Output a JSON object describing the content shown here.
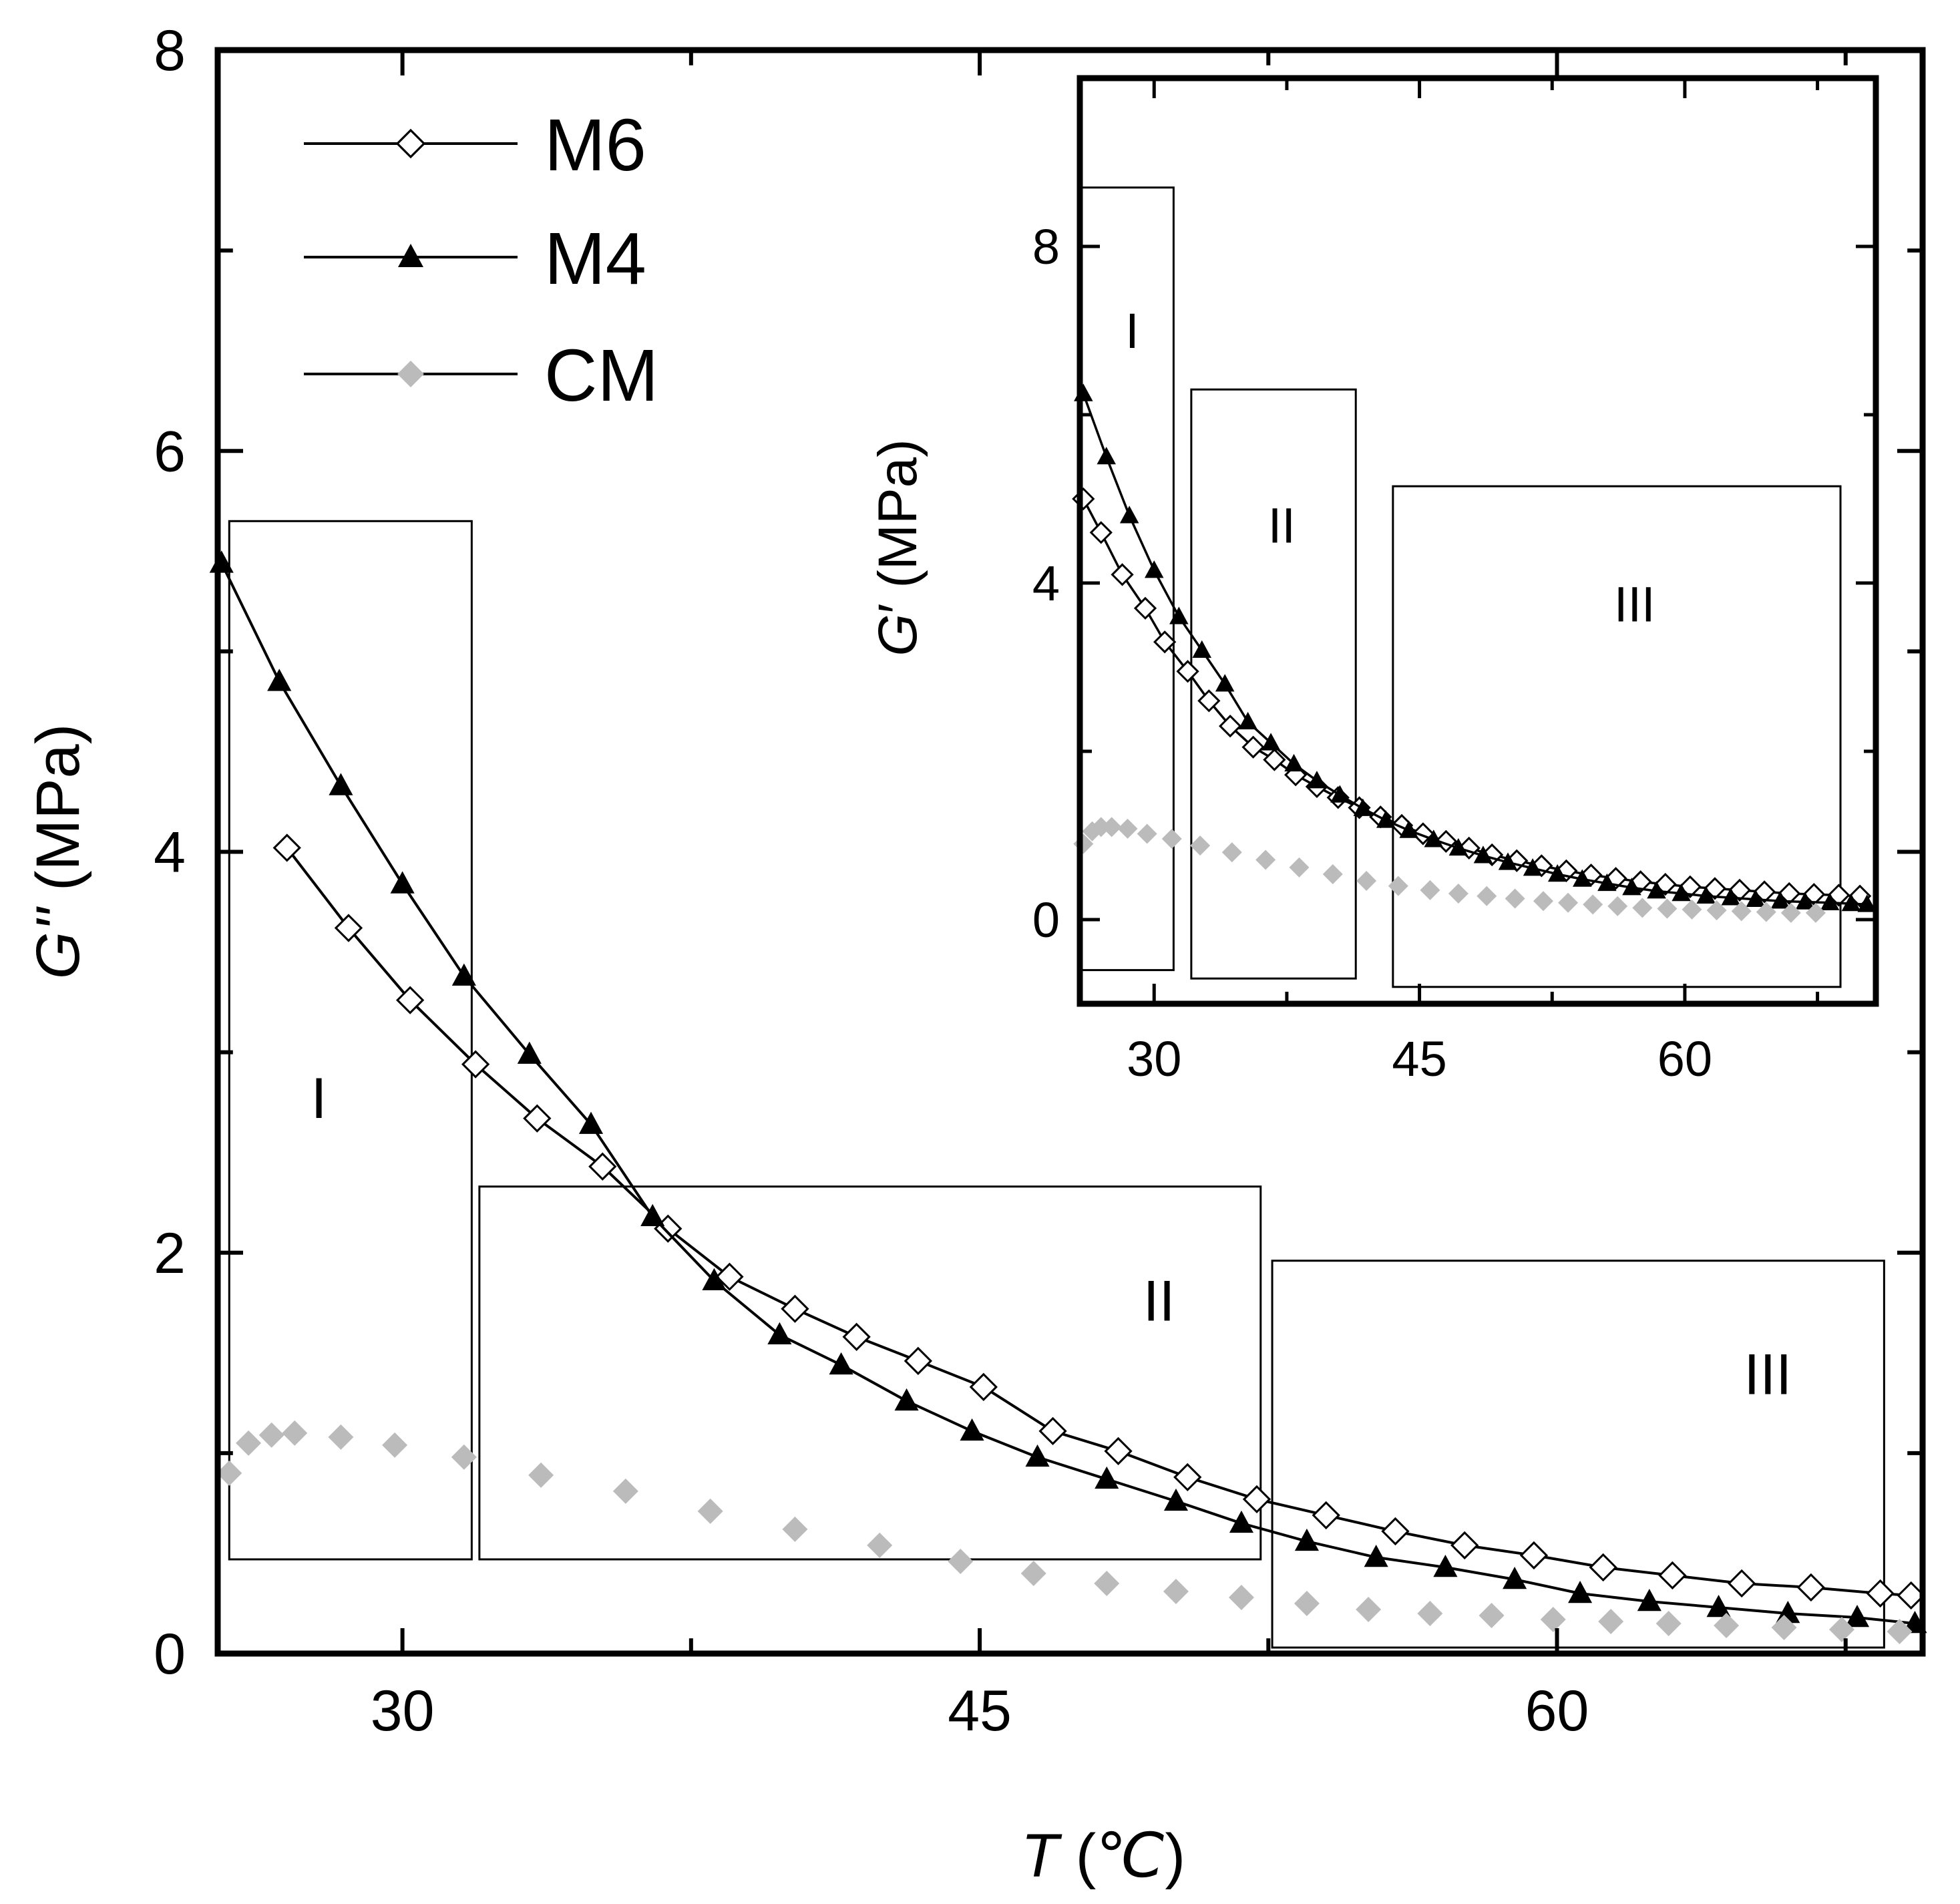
{
  "chart_data": [
    {
      "panel": "main",
      "type": "line",
      "title": "",
      "xlabel": "T (℃)",
      "ylabel": "G'' (MPa)",
      "xlim": [
        25.2,
        69.5
      ],
      "ylim": [
        0,
        8
      ],
      "xticks": [
        30,
        45,
        60
      ],
      "yticks": [
        0,
        2,
        4,
        6,
        8
      ],
      "legend": {
        "position": "top-left",
        "entries": [
          {
            "name": "M6",
            "marker": "open-diamond",
            "color": "#000000"
          },
          {
            "name": "M4",
            "marker": "filled-triangle",
            "color": "#000000"
          },
          {
            "name": "CM",
            "marker": "filled-diamond",
            "color": "#bbbbbb"
          }
        ]
      },
      "regions": [
        {
          "label": "I",
          "x_range": [
            25.5,
            31.8
          ],
          "y_range": [
            0.47,
            5.65
          ]
        },
        {
          "label": "II",
          "x_range": [
            32.0,
            52.3
          ],
          "y_range": [
            0.47,
            2.33
          ]
        },
        {
          "label": "III",
          "x_range": [
            52.6,
            68.5
          ],
          "y_range": [
            0.03,
            1.96
          ]
        }
      ],
      "series": [
        {
          "name": "M6",
          "x": [
            27.0,
            28.6,
            30.2,
            31.9,
            33.5,
            35.2,
            36.9,
            38.5,
            40.2,
            41.8,
            43.4,
            45.1,
            46.9,
            48.6,
            50.4,
            52.2,
            54.0,
            55.8,
            57.6,
            59.4,
            61.2,
            63.0,
            64.8,
            66.6,
            68.4,
            69.2
          ],
          "y": [
            4.02,
            3.62,
            3.26,
            2.94,
            2.67,
            2.43,
            2.12,
            1.88,
            1.72,
            1.58,
            1.46,
            1.33,
            1.11,
            1.01,
            0.88,
            0.77,
            0.69,
            0.61,
            0.54,
            0.49,
            0.43,
            0.39,
            0.35,
            0.33,
            0.3,
            0.29
          ]
        },
        {
          "name": "M4",
          "x": [
            25.3,
            26.8,
            28.4,
            30.0,
            31.6,
            33.3,
            34.9,
            36.5,
            38.1,
            39.8,
            41.4,
            43.1,
            44.8,
            46.5,
            48.3,
            50.1,
            51.8,
            53.5,
            55.3,
            57.1,
            58.9,
            60.6,
            62.4,
            64.2,
            66.0,
            67.8,
            69.3
          ],
          "y": [
            5.44,
            4.85,
            4.33,
            3.84,
            3.38,
            2.99,
            2.64,
            2.18,
            1.86,
            1.59,
            1.44,
            1.26,
            1.11,
            0.98,
            0.87,
            0.76,
            0.65,
            0.56,
            0.48,
            0.43,
            0.37,
            0.3,
            0.26,
            0.23,
            0.2,
            0.18,
            0.15
          ]
        },
        {
          "name": "CM",
          "x": [
            25.5,
            26.0,
            26.6,
            27.2,
            28.4,
            29.8,
            31.6,
            33.6,
            35.8,
            38.0,
            40.2,
            42.4,
            44.5,
            46.4,
            48.3,
            50.1,
            51.8,
            53.5,
            55.1,
            56.7,
            58.3,
            59.9,
            61.4,
            62.9,
            64.4,
            65.9,
            67.4,
            68.9
          ],
          "y": [
            0.9,
            1.05,
            1.09,
            1.1,
            1.08,
            1.04,
            0.98,
            0.89,
            0.81,
            0.71,
            0.62,
            0.54,
            0.46,
            0.4,
            0.35,
            0.31,
            0.28,
            0.25,
            0.22,
            0.2,
            0.19,
            0.17,
            0.16,
            0.15,
            0.14,
            0.13,
            0.12,
            0.11
          ]
        }
      ]
    },
    {
      "panel": "inset",
      "type": "line",
      "title": "",
      "xlabel": "",
      "ylabel": "G′ (MPa)",
      "xlim": [
        25.8,
        70.8
      ],
      "ylim": [
        -1.0,
        10.0
      ],
      "xticks": [
        30,
        45,
        60
      ],
      "yticks": [
        0,
        4,
        8
      ],
      "regions": [
        {
          "label": "I",
          "x_range": [
            25.9,
            31.1
          ],
          "y_range": [
            -0.6,
            8.7
          ]
        },
        {
          "label": "II",
          "x_range": [
            32.1,
            41.4
          ],
          "y_range": [
            -0.7,
            6.3
          ]
        },
        {
          "label": "III",
          "x_range": [
            43.5,
            68.8
          ],
          "y_range": [
            -0.8,
            5.15
          ]
        }
      ],
      "series": [
        {
          "name": "M6",
          "x": [
            26.0,
            27.0,
            28.2,
            29.5,
            30.6,
            31.9,
            33.1,
            34.3,
            35.6,
            36.8,
            38.0,
            39.2,
            40.4,
            41.6,
            42.8,
            44.0,
            45.2,
            46.5,
            47.8,
            49.1,
            50.5,
            51.9,
            53.3,
            54.7,
            56.1,
            57.5,
            58.9,
            60.3,
            61.7,
            63.1,
            64.5,
            65.9,
            67.3,
            68.7,
            69.9
          ],
          "y": [
            5.0,
            4.6,
            4.1,
            3.7,
            3.3,
            2.95,
            2.6,
            2.3,
            2.05,
            1.9,
            1.72,
            1.58,
            1.45,
            1.33,
            1.22,
            1.12,
            1.02,
            0.93,
            0.85,
            0.77,
            0.7,
            0.64,
            0.58,
            0.53,
            0.49,
            0.45,
            0.42,
            0.39,
            0.37,
            0.35,
            0.33,
            0.31,
            0.3,
            0.29,
            0.28
          ]
        },
        {
          "name": "M4",
          "x": [
            26.0,
            27.3,
            28.6,
            30.0,
            31.4,
            32.7,
            34.0,
            35.3,
            36.6,
            37.9,
            39.2,
            40.5,
            41.8,
            43.1,
            44.4,
            45.8,
            47.2,
            48.6,
            50.0,
            51.4,
            52.8,
            54.2,
            55.6,
            57.0,
            58.4,
            59.8,
            61.2,
            62.6,
            64.0,
            65.4,
            66.8,
            68.2,
            69.4,
            70.3
          ],
          "y": [
            6.25,
            5.5,
            4.8,
            4.15,
            3.6,
            3.2,
            2.8,
            2.35,
            2.1,
            1.85,
            1.65,
            1.48,
            1.32,
            1.18,
            1.06,
            0.95,
            0.85,
            0.76,
            0.68,
            0.61,
            0.54,
            0.48,
            0.43,
            0.38,
            0.34,
            0.31,
            0.28,
            0.26,
            0.24,
            0.22,
            0.21,
            0.2,
            0.19,
            0.18
          ]
        },
        {
          "name": "CM",
          "x": [
            26.0,
            26.5,
            27.0,
            27.6,
            28.5,
            29.6,
            31.0,
            32.6,
            34.4,
            36.3,
            38.2,
            40.1,
            42.0,
            43.8,
            45.6,
            47.2,
            48.8,
            50.4,
            52.0,
            53.4,
            54.8,
            56.2,
            57.6,
            59.0,
            60.4,
            61.8,
            63.2,
            64.6,
            66.0,
            67.4
          ],
          "y": [
            0.9,
            1.05,
            1.1,
            1.1,
            1.08,
            1.02,
            0.96,
            0.88,
            0.8,
            0.71,
            0.62,
            0.54,
            0.46,
            0.4,
            0.35,
            0.31,
            0.28,
            0.25,
            0.22,
            0.2,
            0.18,
            0.16,
            0.14,
            0.13,
            0.12,
            0.11,
            0.1,
            0.09,
            0.08,
            0.08
          ]
        }
      ]
    }
  ]
}
